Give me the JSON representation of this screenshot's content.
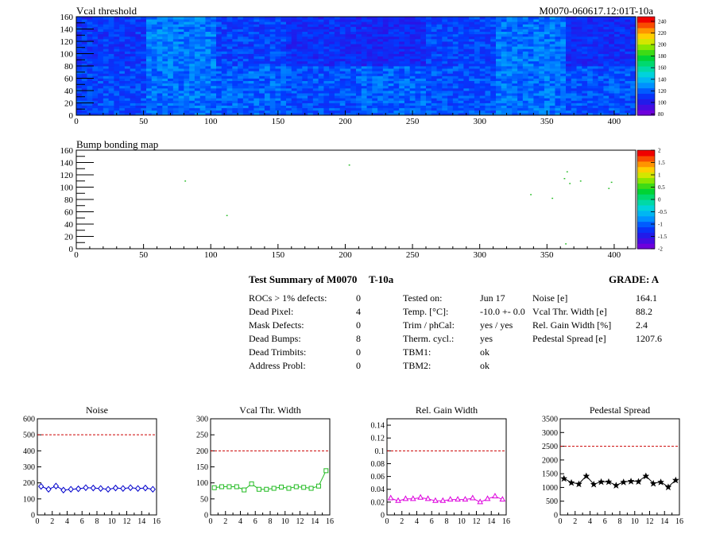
{
  "header": {
    "panel1_title": "Vcal threshold",
    "panel1_right_title": "M0070-060617.12:01T-10a",
    "panel2_title": "Bump bonding map"
  },
  "map1": {
    "x_ticks": [
      "0",
      "50",
      "100",
      "150",
      "200",
      "250",
      "300",
      "350",
      "400"
    ],
    "y_ticks": [
      "0",
      "20",
      "40",
      "60",
      "80",
      "100",
      "120",
      "140",
      "160"
    ],
    "xlim": [
      0,
      416
    ],
    "ylim": [
      0,
      160
    ],
    "colorbar_ticks": [
      "80",
      "100",
      "120",
      "140",
      "160",
      "180",
      "200",
      "220",
      "240"
    ],
    "colorbar_range": [
      78,
      248
    ]
  },
  "map2": {
    "x_ticks": [
      "0",
      "50",
      "100",
      "150",
      "200",
      "250",
      "300",
      "350",
      "400"
    ],
    "y_ticks": [
      "0",
      "20",
      "40",
      "60",
      "80",
      "100",
      "120",
      "140",
      "160"
    ],
    "xlim": [
      0,
      416
    ],
    "ylim": [
      0,
      160
    ],
    "colorbar_ticks": [
      "-2",
      "-1.5",
      "-1",
      "-0.5",
      "0",
      "0.5",
      "1",
      "1.5",
      "2"
    ],
    "colorbar_range": [
      -2,
      2
    ],
    "points": [
      [
        81,
        110
      ],
      [
        112,
        54
      ],
      [
        203,
        136
      ],
      [
        338,
        88
      ],
      [
        354,
        82
      ],
      [
        363,
        114
      ],
      [
        365,
        125
      ],
      [
        367,
        106
      ],
      [
        375,
        110
      ],
      [
        396,
        98
      ],
      [
        398,
        108
      ],
      [
        364,
        8
      ]
    ]
  },
  "summary": {
    "title": "Test Summary of M0070",
    "module_tag": "T-10a",
    "grade_label": "GRADE:  A",
    "col1": [
      {
        "label": "ROCs > 1% defects:",
        "value": "0"
      },
      {
        "label": "Dead Pixel:",
        "value": "4"
      },
      {
        "label": "Mask Defects:",
        "value": "0"
      },
      {
        "label": "Dead Bumps:",
        "value": "8"
      },
      {
        "label": "Dead Trimbits:",
        "value": "0"
      },
      {
        "label": "Address Probl:",
        "value": "0"
      }
    ],
    "col2": [
      {
        "label": "Tested on:",
        "value": "Jun 17"
      },
      {
        "label": "Temp. [°C]:",
        "value": "-10.0 +- 0.0"
      },
      {
        "label": "Trim / phCal:",
        "value": "yes / yes"
      },
      {
        "label": "Therm. cycl.:",
        "value": "yes"
      },
      {
        "label": "TBM1:",
        "value": "ok"
      },
      {
        "label": "TBM2:",
        "value": "ok"
      }
    ],
    "col3": [
      {
        "label": "Noise [e]",
        "value": "164.1"
      },
      {
        "label": "Vcal Thr. Width [e]",
        "value": "88.2"
      },
      {
        "label": "Rel. Gain Width [%]",
        "value": "2.4"
      },
      {
        "label": "Pedestal Spread [e]",
        "value": "1207.6"
      }
    ]
  },
  "chart_data": [
    {
      "type": "heatmap",
      "title": "Vcal threshold",
      "xlim": [
        0,
        416
      ],
      "ylim": [
        0,
        160
      ],
      "zlim": [
        78,
        248
      ],
      "note_blocks": "16 ROC blocks (52x80 each), values mostly 90-130"
    },
    {
      "type": "scatter",
      "title": "Bump bonding map",
      "xlim": [
        0,
        416
      ],
      "ylim": [
        0,
        160
      ],
      "x": [
        81,
        112,
        203,
        338,
        354,
        363,
        365,
        367,
        375,
        396,
        398,
        364
      ],
      "y": [
        110,
        54,
        136,
        88,
        82,
        114,
        125,
        106,
        110,
        98,
        108,
        8
      ]
    },
    {
      "type": "line",
      "title": "Noise",
      "x": [
        0,
        1,
        2,
        3,
        4,
        5,
        6,
        7,
        8,
        9,
        10,
        11,
        12,
        13,
        14,
        15
      ],
      "values": [
        178,
        160,
        180,
        155,
        160,
        163,
        170,
        168,
        165,
        160,
        168,
        165,
        170,
        165,
        168,
        160
      ],
      "threshold": 500,
      "ylim": [
        0,
        600
      ],
      "xlim": [
        0,
        16
      ],
      "y_ticks": [
        "0",
        "100",
        "200",
        "300",
        "400",
        "500",
        "600"
      ],
      "x_ticks": [
        "0",
        "2",
        "4",
        "6",
        "8",
        "10",
        "12",
        "14",
        "16"
      ],
      "color": "#0000cc",
      "marker": "diamond"
    },
    {
      "type": "line",
      "title": "Vcal Thr. Width",
      "x": [
        0,
        1,
        2,
        3,
        4,
        5,
        6,
        7,
        8,
        9,
        10,
        11,
        12,
        13,
        14,
        15
      ],
      "values": [
        85,
        88,
        88,
        88,
        78,
        97,
        80,
        80,
        83,
        87,
        83,
        88,
        86,
        83,
        90,
        138
      ],
      "threshold": 200,
      "ylim": [
        0,
        300
      ],
      "xlim": [
        0,
        16
      ],
      "y_ticks": [
        "0",
        "50",
        "100",
        "150",
        "200",
        "250",
        "300"
      ],
      "x_ticks": [
        "0",
        "2",
        "4",
        "6",
        "8",
        "10",
        "12",
        "14",
        "16"
      ],
      "color": "#22bb22",
      "marker": "square"
    },
    {
      "type": "line",
      "title": "Rel. Gain Width",
      "x": [
        0,
        1,
        2,
        3,
        4,
        5,
        6,
        7,
        8,
        9,
        10,
        11,
        12,
        13,
        14,
        15
      ],
      "values": [
        0.026,
        0.022,
        0.025,
        0.025,
        0.027,
        0.025,
        0.022,
        0.022,
        0.024,
        0.024,
        0.024,
        0.026,
        0.02,
        0.025,
        0.029,
        0.024
      ],
      "threshold": 0.1,
      "ylim": [
        0,
        0.15
      ],
      "xlim": [
        0,
        16
      ],
      "y_ticks": [
        "0",
        "0.02",
        "0.04",
        "0.06",
        "0.08",
        "0.1",
        "0.12",
        "0.14"
      ],
      "x_ticks": [
        "0",
        "2",
        "4",
        "6",
        "8",
        "10",
        "12",
        "14",
        "16"
      ],
      "color": "#dd00dd",
      "marker": "triangle"
    },
    {
      "type": "line",
      "title": "Pedestal Spread",
      "x": [
        0,
        1,
        2,
        3,
        4,
        5,
        6,
        7,
        8,
        9,
        10,
        11,
        12,
        13,
        14,
        15
      ],
      "values": [
        1330,
        1180,
        1130,
        1420,
        1120,
        1210,
        1210,
        1080,
        1200,
        1230,
        1220,
        1420,
        1150,
        1200,
        1020,
        1270
      ],
      "threshold": 2500,
      "ylim": [
        0,
        3500
      ],
      "xlim": [
        0,
        16
      ],
      "y_ticks": [
        "0",
        "500",
        "1000",
        "1500",
        "2000",
        "2500",
        "3000",
        "3500"
      ],
      "x_ticks": [
        "0",
        "2",
        "4",
        "6",
        "8",
        "10",
        "12",
        "14",
        "16"
      ],
      "color": "#000000",
      "marker": "star"
    }
  ]
}
